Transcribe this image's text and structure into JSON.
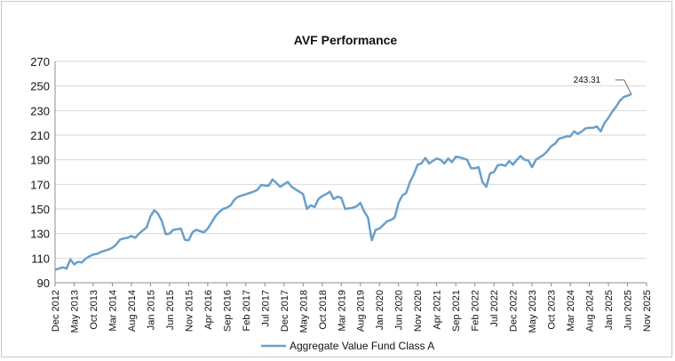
{
  "chart_data": {
    "type": "line",
    "title": "AVF Performance",
    "ylim": [
      90,
      270
    ],
    "yticks": [
      90,
      110,
      130,
      150,
      170,
      190,
      210,
      230,
      250,
      270
    ],
    "x_tick_labels": [
      "Dec 2012",
      "May 2013",
      "Oct 2013",
      "Mar 2014",
      "Aug 2014",
      "Jan 2015",
      "Jun 2015",
      "Nov 2015",
      "Apr 2016",
      "Sep 2016",
      "Feb 2017",
      "Jul 2017",
      "Dec 2017",
      "May 2018",
      "Oct 2018",
      "Mar 2019",
      "Aug 2019",
      "Jan 2020",
      "Jun 2020",
      "Nov 2020",
      "Apr 2021",
      "Sep 2021",
      "Feb 2022",
      "Jul 2022",
      "Dec 2022",
      "May 2023",
      "Oct 2023",
      "Mar 2024",
      "Aug 2024",
      "Jan 2025",
      "Jun 2025",
      "Nov 2025"
    ],
    "grid": true,
    "legend_position": "bottom",
    "colors": {
      "series": "#6a9fc8",
      "grid": "#d9d9d9",
      "axis": "#8c8c8c"
    },
    "series": [
      {
        "name": "Aggregate Value Fund Class A",
        "values": [
          [
            0,
            100.5
          ],
          [
            1,
            101.5
          ],
          [
            2,
            102.5
          ],
          [
            3,
            101.5
          ],
          [
            4,
            109
          ],
          [
            5,
            105
          ],
          [
            6,
            107
          ],
          [
            7,
            106.5
          ],
          [
            8,
            109.5
          ],
          [
            9,
            111.5
          ],
          [
            10,
            113
          ],
          [
            11,
            113.5
          ],
          [
            12,
            115
          ],
          [
            13,
            116
          ],
          [
            14,
            117
          ],
          [
            15,
            118.5
          ],
          [
            16,
            121
          ],
          [
            17,
            125
          ],
          [
            18,
            126
          ],
          [
            19,
            126.5
          ],
          [
            20,
            128
          ],
          [
            21,
            126.5
          ],
          [
            22,
            130
          ],
          [
            23,
            132.5
          ],
          [
            24,
            135
          ],
          [
            25,
            144
          ],
          [
            26,
            149
          ],
          [
            27,
            146
          ],
          [
            28,
            140
          ],
          [
            29,
            129.5
          ],
          [
            30,
            130
          ],
          [
            31,
            133
          ],
          [
            32,
            133.5
          ],
          [
            33,
            134
          ],
          [
            34,
            125
          ],
          [
            35,
            124.5
          ],
          [
            36,
            131
          ],
          [
            37,
            133
          ],
          [
            38,
            132
          ],
          [
            39,
            131
          ],
          [
            40,
            134
          ],
          [
            41,
            139
          ],
          [
            42,
            144
          ],
          [
            43,
            147.5
          ],
          [
            44,
            150
          ],
          [
            45,
            151
          ],
          [
            46,
            153
          ],
          [
            47,
            157.5
          ],
          [
            48,
            160
          ],
          [
            49,
            161
          ],
          [
            50,
            162
          ],
          [
            51,
            163
          ],
          [
            52,
            164
          ],
          [
            53,
            165.5
          ],
          [
            54,
            169.5
          ],
          [
            55,
            169
          ],
          [
            56,
            169
          ],
          [
            57,
            174
          ],
          [
            58,
            171
          ],
          [
            59,
            168
          ],
          [
            60,
            170
          ],
          [
            61,
            172
          ],
          [
            62,
            168
          ],
          [
            63,
            166
          ],
          [
            64,
            164
          ],
          [
            65,
            162
          ],
          [
            66,
            150
          ],
          [
            67,
            153
          ],
          [
            68,
            151.5
          ],
          [
            69,
            158
          ],
          [
            70,
            160.5
          ],
          [
            71,
            162
          ],
          [
            72,
            164
          ],
          [
            73,
            158
          ],
          [
            74,
            160
          ],
          [
            75,
            159
          ],
          [
            76,
            150
          ],
          [
            77,
            150.5
          ],
          [
            78,
            151
          ],
          [
            79,
            152
          ],
          [
            80,
            155
          ],
          [
            81,
            148
          ],
          [
            82,
            143
          ],
          [
            83,
            124.5
          ],
          [
            84,
            133
          ],
          [
            85,
            134
          ],
          [
            86,
            137
          ],
          [
            87,
            140
          ],
          [
            88,
            141
          ],
          [
            89,
            143
          ],
          [
            90,
            155
          ],
          [
            91,
            161
          ],
          [
            92,
            163
          ],
          [
            93,
            172
          ],
          [
            94,
            178
          ],
          [
            95,
            186
          ],
          [
            96,
            187
          ],
          [
            97,
            191.5
          ],
          [
            98,
            187
          ],
          [
            99,
            189
          ],
          [
            100,
            191
          ],
          [
            101,
            190
          ],
          [
            102,
            187
          ],
          [
            103,
            191
          ],
          [
            104,
            188
          ],
          [
            105,
            192.5
          ],
          [
            106,
            192
          ],
          [
            107,
            191
          ],
          [
            108,
            190
          ],
          [
            109,
            183
          ],
          [
            110,
            183
          ],
          [
            111,
            184
          ],
          [
            112,
            172
          ],
          [
            113,
            168
          ],
          [
            114,
            179
          ],
          [
            115,
            180
          ],
          [
            116,
            185.5
          ],
          [
            117,
            186
          ],
          [
            118,
            185
          ],
          [
            119,
            189
          ],
          [
            120,
            186
          ],
          [
            121,
            190
          ],
          [
            122,
            193
          ],
          [
            123,
            190
          ],
          [
            124,
            189.5
          ],
          [
            125,
            184
          ],
          [
            126,
            190
          ],
          [
            127,
            192
          ],
          [
            128,
            194
          ],
          [
            129,
            197
          ],
          [
            130,
            201
          ],
          [
            131,
            203
          ],
          [
            132,
            207
          ],
          [
            133,
            208
          ],
          [
            134,
            209
          ],
          [
            135,
            209
          ],
          [
            136,
            213
          ],
          [
            137,
            211
          ],
          [
            138,
            213
          ],
          [
            139,
            215.5
          ],
          [
            140,
            216
          ],
          [
            141,
            216
          ],
          [
            142,
            217
          ],
          [
            143,
            213
          ],
          [
            144,
            220
          ],
          [
            145,
            224
          ],
          [
            146,
            229
          ],
          [
            147,
            233
          ],
          [
            148,
            238
          ],
          [
            149,
            241
          ],
          [
            150,
            242
          ],
          [
            151,
            243.31
          ]
        ]
      }
    ],
    "x_extent": [
      0,
      155
    ],
    "annotations": [
      {
        "text": "243.31",
        "x": 151,
        "y": 243.31
      }
    ]
  }
}
